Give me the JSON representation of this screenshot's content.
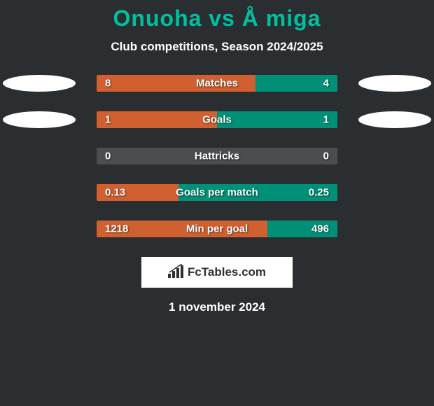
{
  "title": "Onuoha vs Å miga",
  "subtitle": "Club competitions, Season 2024/2025",
  "colors": {
    "background": "#2a2e30",
    "title_color": "#00c0a0",
    "bar_left_color": "#d06030",
    "bar_right_color": "#009078",
    "bar_bg_color": "#4a4e50",
    "ellipse_color": "#ffffff",
    "text_color": "#ffffff"
  },
  "stats": [
    {
      "label": "Matches",
      "left_value": "8",
      "right_value": "4",
      "left_width_pct": 66,
      "right_width_pct": 34,
      "show_ellipses": true
    },
    {
      "label": "Goals",
      "left_value": "1",
      "right_value": "1",
      "left_width_pct": 50,
      "right_width_pct": 50,
      "show_ellipses": true
    },
    {
      "label": "Hattricks",
      "left_value": "0",
      "right_value": "0",
      "left_width_pct": 0,
      "right_width_pct": 0,
      "show_ellipses": false
    },
    {
      "label": "Goals per match",
      "left_value": "0.13",
      "right_value": "0.25",
      "left_width_pct": 34,
      "right_width_pct": 66,
      "show_ellipses": false
    },
    {
      "label": "Min per goal",
      "left_value": "1218",
      "right_value": "496",
      "left_width_pct": 71,
      "right_width_pct": 29,
      "show_ellipses": false
    }
  ],
  "brand": {
    "text": "FcTables.com"
  },
  "date": "1 november 2024"
}
